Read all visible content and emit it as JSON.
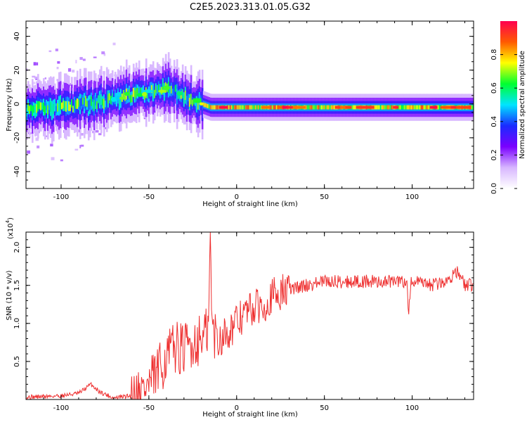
{
  "figure": {
    "title": "C2E5.2023.313.01.05.G32"
  },
  "chart_data": [
    {
      "type": "heatmap",
      "xlabel": "Height of straight line (km)",
      "ylabel": "Frequency (Hz)",
      "xlim": [
        -120,
        135
      ],
      "ylim": [
        -50,
        49
      ],
      "xticks": [
        -100,
        -50,
        0,
        50,
        100
      ],
      "yticks": [
        -40,
        -20,
        0,
        20,
        40
      ],
      "x_tick_labels": [
        "-100",
        "-50",
        "0",
        "50",
        "100"
      ],
      "y_tick_labels": [
        "-40",
        "-20",
        "0",
        "20",
        "40"
      ],
      "ridge": {
        "x": [
          -120,
          -100,
          -80,
          -65,
          -55,
          -45,
          -40,
          -35,
          -30,
          -25,
          -20,
          -15,
          -10,
          0,
          50,
          100,
          135
        ],
        "y": [
          -3,
          -2,
          1,
          4,
          6,
          8,
          9,
          8,
          4,
          2,
          0,
          -2,
          -2,
          -2,
          -2,
          -2,
          -2
        ]
      },
      "colorbar": {
        "label": "Normalized spectral amplitude",
        "range": [
          0.0,
          1.0
        ],
        "ticks": [
          0.0,
          0.2,
          0.4,
          0.6,
          0.8
        ],
        "tick_labels": [
          "0.0",
          "0.2",
          "0.4",
          "0.6",
          "0.8"
        ],
        "colors": [
          "#ffffff",
          "#d7b6ff",
          "#7a00ff",
          "#1a2bff",
          "#00e5ff",
          "#00ff30",
          "#ffff00",
          "#ff5a00",
          "#ff0050"
        ]
      }
    },
    {
      "type": "line",
      "xlabel": "Height of straight line (km)",
      "ylabel": "SNR (10 * v/v)",
      "y_multiplier_label": "(x10",
      "y_multiplier_exp": "4",
      "xlim": [
        -120,
        135
      ],
      "ylim": [
        0,
        2.2
      ],
      "xticks": [
        -100,
        -50,
        0,
        50,
        100
      ],
      "yticks": [
        0.5,
        1.0,
        1.5,
        2.0
      ],
      "x_tick_labels": [
        "-100",
        "-50",
        "0",
        "50",
        "100"
      ],
      "y_tick_labels": [
        "0.5",
        "1.0",
        "1.5",
        "2.0"
      ],
      "series": [
        {
          "color": "#ee3030",
          "x": [
            -120,
            -100,
            -90,
            -83,
            -78,
            -70,
            -60,
            -55,
            -50,
            -45,
            -40,
            -35,
            -30,
            -25,
            -20,
            -16,
            -15,
            -14,
            -10,
            -5,
            0,
            5,
            10,
            15,
            20,
            25,
            30,
            40,
            50,
            60,
            70,
            80,
            90,
            97,
            98,
            99,
            100,
            110,
            120,
            125,
            130,
            135
          ],
          "y": [
            0.03,
            0.05,
            0.08,
            0.2,
            0.1,
            0.02,
            0.05,
            0.1,
            0.2,
            0.35,
            0.55,
            0.7,
            0.65,
            0.75,
            0.8,
            0.9,
            2.2,
            0.9,
            0.8,
            0.9,
            1.0,
            1.15,
            1.2,
            1.25,
            1.35,
            1.4,
            1.45,
            1.5,
            1.55,
            1.55,
            1.55,
            1.55,
            1.55,
            1.55,
            1.1,
            1.5,
            1.55,
            1.5,
            1.55,
            1.7,
            1.5,
            1.5
          ]
        }
      ]
    }
  ]
}
